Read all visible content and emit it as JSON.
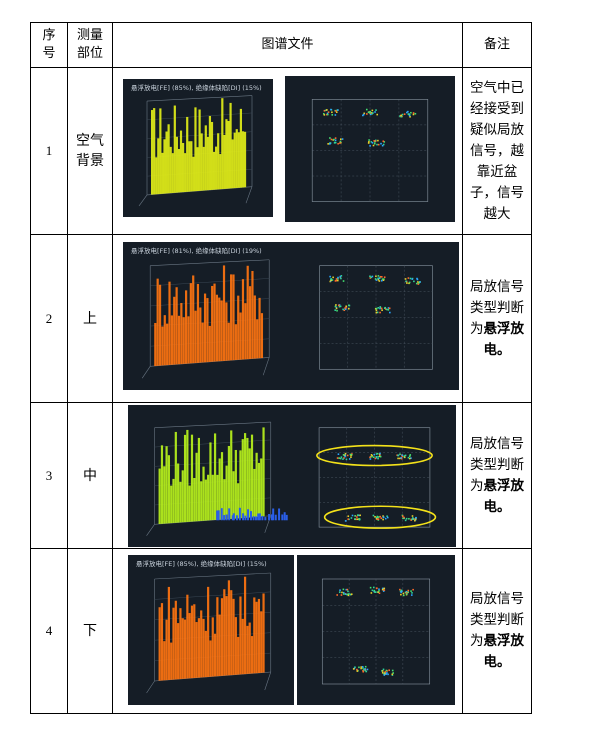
{
  "table": {
    "headers": {
      "seq": "序号",
      "part": "测量部位",
      "file": "图谱文件",
      "note": "备注"
    },
    "rows": [
      {
        "seq": "1",
        "part": "空气背景",
        "note": "空气中已经接受到疑似局放信号，越靠近盆子，信号越大",
        "bar_caption": "悬浮放电[FE] (85%), 绝缘体缺陷[DI] (15%)",
        "bar_color": "#e2ee18"
      },
      {
        "seq": "2",
        "part": "上",
        "note_plain": "局放信号类型判断为",
        "note_bold": "悬浮放电。",
        "bar_caption": "悬浮放电[FE] (81%), 绝缘体缺陷[DI] (19%)",
        "bar_color": "#ff7410"
      },
      {
        "seq": "3",
        "part": "中",
        "note_plain": "局放信号类型判断为",
        "note_bold": "悬浮放电。",
        "bar_caption": "",
        "bar_color": "#b8f21c",
        "highlight_color": "#f4e21a"
      },
      {
        "seq": "4",
        "part": "下",
        "note_plain": "局放信号类型判断为",
        "note_bold": "悬浮放电。",
        "bar_caption": "悬浮放电[FE] (85%), 绝缘体缺陷[DI] (15%)",
        "bar_color": "#ff7410"
      }
    ]
  }
}
